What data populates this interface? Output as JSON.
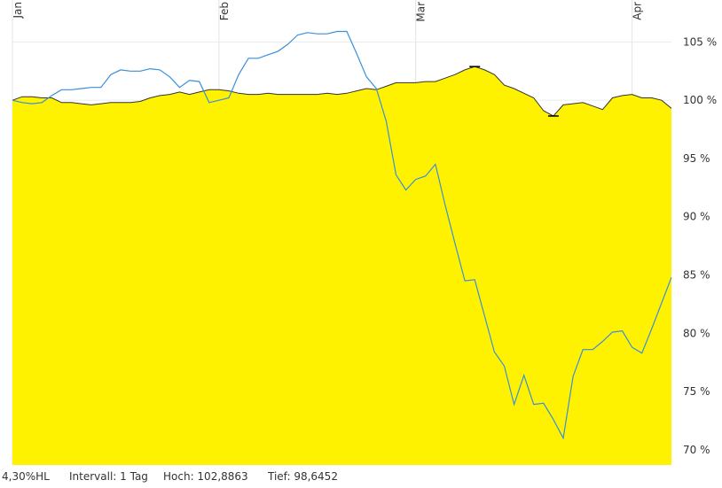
{
  "chart_data": {
    "type": "line",
    "x": [
      0,
      1,
      2,
      3,
      4,
      5,
      6,
      7,
      8,
      9,
      10,
      11,
      12,
      13,
      14,
      15,
      16,
      17,
      18,
      19,
      20,
      21,
      22,
      23,
      24,
      25,
      26,
      27,
      28,
      29,
      30,
      31,
      32,
      33,
      34,
      35,
      36,
      37,
      38,
      39,
      40,
      41,
      42,
      43,
      44,
      45,
      46,
      47,
      48,
      49,
      50,
      51,
      52,
      53,
      54,
      55,
      56,
      57,
      58,
      59,
      60,
      61,
      62,
      63,
      64,
      65,
      66,
      67
    ],
    "series": [
      {
        "name": null,
        "color": "#fff200",
        "line_color": "#333333",
        "area": true,
        "values": [
          100.0,
          100.3,
          100.3,
          100.2,
          100.2,
          99.8,
          99.8,
          99.7,
          99.6,
          99.7,
          99.8,
          99.8,
          99.8,
          99.9,
          100.2,
          100.4,
          100.5,
          100.7,
          100.5,
          100.7,
          100.9,
          100.9,
          100.8,
          100.6,
          100.5,
          100.5,
          100.6,
          100.5,
          100.5,
          100.5,
          100.5,
          100.5,
          100.6,
          100.5,
          100.6,
          100.8,
          101.0,
          100.9,
          101.2,
          101.5,
          101.5,
          101.5,
          101.6,
          101.6,
          101.9,
          102.2,
          102.6,
          102.8863,
          102.6,
          102.2,
          101.3,
          101.0,
          100.6,
          100.2,
          99.1,
          98.6452,
          99.6,
          99.7,
          99.8,
          99.5,
          99.2,
          100.2,
          100.4,
          100.5,
          100.2,
          100.2,
          100.0,
          99.3
        ]
      },
      {
        "name": null,
        "color": "#3a8fd9",
        "area": false,
        "values": [
          100.0,
          99.8,
          99.7,
          99.8,
          100.4,
          100.9,
          100.9,
          101.0,
          101.1,
          101.1,
          102.2,
          102.6,
          102.5,
          102.5,
          102.7,
          102.6,
          102.0,
          101.1,
          101.7,
          101.6,
          99.8,
          100.0,
          100.2,
          102.2,
          103.6,
          103.6,
          103.9,
          104.2,
          104.8,
          105.6,
          105.8,
          105.7,
          105.7,
          105.9,
          105.9,
          104.0,
          102.0,
          101.0,
          98.2,
          93.6,
          92.3,
          93.2,
          93.5,
          94.5,
          91.0,
          87.7,
          84.5,
          84.6,
          81.5,
          78.4,
          77.2,
          73.9,
          76.4,
          73.9,
          74.0,
          72.6,
          71.0,
          76.3,
          78.6,
          78.6,
          79.3,
          80.1,
          80.2,
          78.8,
          78.3,
          80.4,
          82.6,
          84.8
        ]
      }
    ],
    "high_index": 47,
    "low_index": 55,
    "xlim": [
      0,
      67
    ],
    "xticks": [
      {
        "value": 0,
        "label": "Jan"
      },
      {
        "value": 21,
        "label": "Feb"
      },
      {
        "value": 41,
        "label": "Mar"
      },
      {
        "value": 63,
        "label": "Apr"
      }
    ],
    "ylim": [
      68.7,
      108.6
    ],
    "yticks": [
      {
        "value": 70,
        "label": "70 %"
      },
      {
        "value": 75,
        "label": "75 %"
      },
      {
        "value": 80,
        "label": "80 %"
      },
      {
        "value": 85,
        "label": "85 %"
      },
      {
        "value": 90,
        "label": "90 %"
      },
      {
        "value": 95,
        "label": "95 %"
      },
      {
        "value": 100,
        "label": "100 %"
      },
      {
        "value": 105,
        "label": "105 %"
      }
    ],
    "grid": true,
    "footer": [
      "4,30%HL",
      "Intervall: 1 Tag",
      "Hoch: 102,8863",
      "Tief: 98,6452"
    ]
  }
}
